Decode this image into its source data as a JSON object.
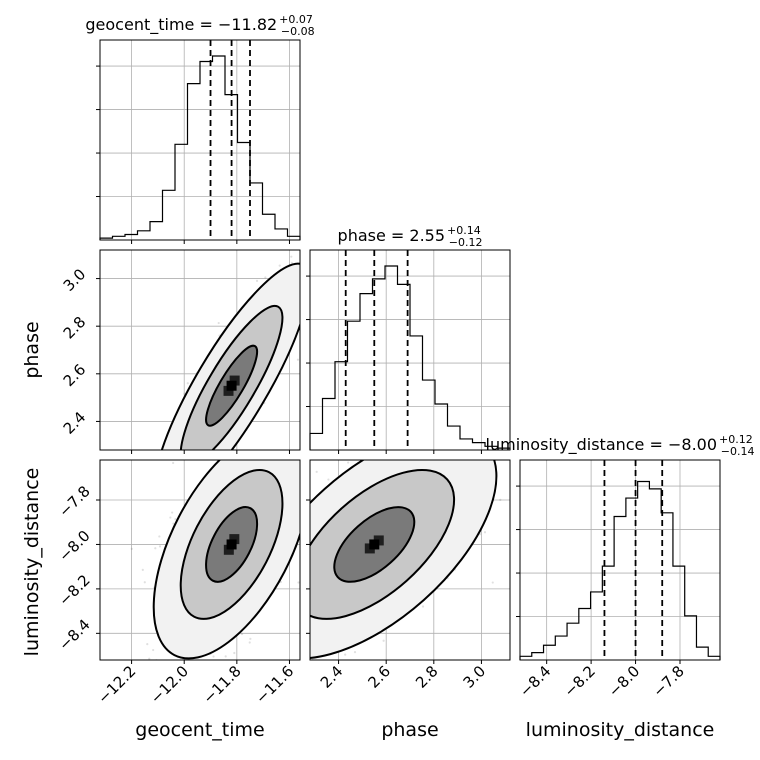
{
  "chart_data": {
    "type": "corner",
    "parameters": [
      {
        "name": "geocent_time",
        "label": "geocent_time",
        "title_main": "geocent_time = −11.82",
        "title_plus": "+0.07",
        "title_minus": "−0.08",
        "median": -11.82,
        "plus": 0.07,
        "minus": 0.08,
        "range": [
          -12.32,
          -11.56
        ],
        "ticks": [
          -12.2,
          -12.0,
          -11.8,
          -11.6
        ],
        "tick_labels": [
          "−12.2",
          "−12.0",
          "−11.8",
          "−11.6"
        ],
        "histogram": [
          0.01,
          0.02,
          0.03,
          0.05,
          0.1,
          0.27,
          0.52,
          0.85,
          0.97,
          1.0,
          0.79,
          0.53,
          0.31,
          0.14,
          0.06,
          0.02
        ]
      },
      {
        "name": "phase",
        "label": "phase",
        "title_main": "phase = 2.55",
        "title_plus": "+0.14",
        "title_minus": "−0.12",
        "median": 2.55,
        "plus": 0.14,
        "minus": 0.12,
        "range": [
          2.28,
          3.12
        ],
        "ticks": [
          2.4,
          2.6,
          2.8,
          3.0
        ],
        "tick_labels": [
          "2.4",
          "2.6",
          "2.8",
          "3.0"
        ],
        "histogram": [
          0.09,
          0.28,
          0.48,
          0.7,
          0.85,
          0.93,
          1.0,
          0.9,
          0.62,
          0.38,
          0.25,
          0.13,
          0.06,
          0.04,
          0.02,
          0.01
        ]
      },
      {
        "name": "luminosity_distance",
        "label": "luminosity_distance",
        "title_main": "luminosity_distance = −8.00",
        "title_plus": "+0.12",
        "title_minus": "−0.14",
        "median": -8.0,
        "plus": 0.12,
        "minus": 0.14,
        "range": [
          -8.52,
          -7.62
        ],
        "ticks": [
          -8.4,
          -8.2,
          -8.0,
          -7.8
        ],
        "tick_labels": [
          "−8.4",
          "−8.2",
          "−8.0",
          "−7.8"
        ],
        "histogram": [
          0.02,
          0.04,
          0.08,
          0.13,
          0.2,
          0.28,
          0.37,
          0.51,
          0.78,
          0.88,
          0.97,
          0.93,
          0.8,
          0.51,
          0.24,
          0.07,
          0.02
        ]
      }
    ],
    "correlations": {
      "phase_vs_geocent_time": 0.85,
      "luminosity_distance_vs_geocent_time": 0.55,
      "luminosity_distance_vs_phase": 0.6
    },
    "contour_levels": [
      0.39,
      0.86,
      0.99
    ],
    "grid": true
  }
}
